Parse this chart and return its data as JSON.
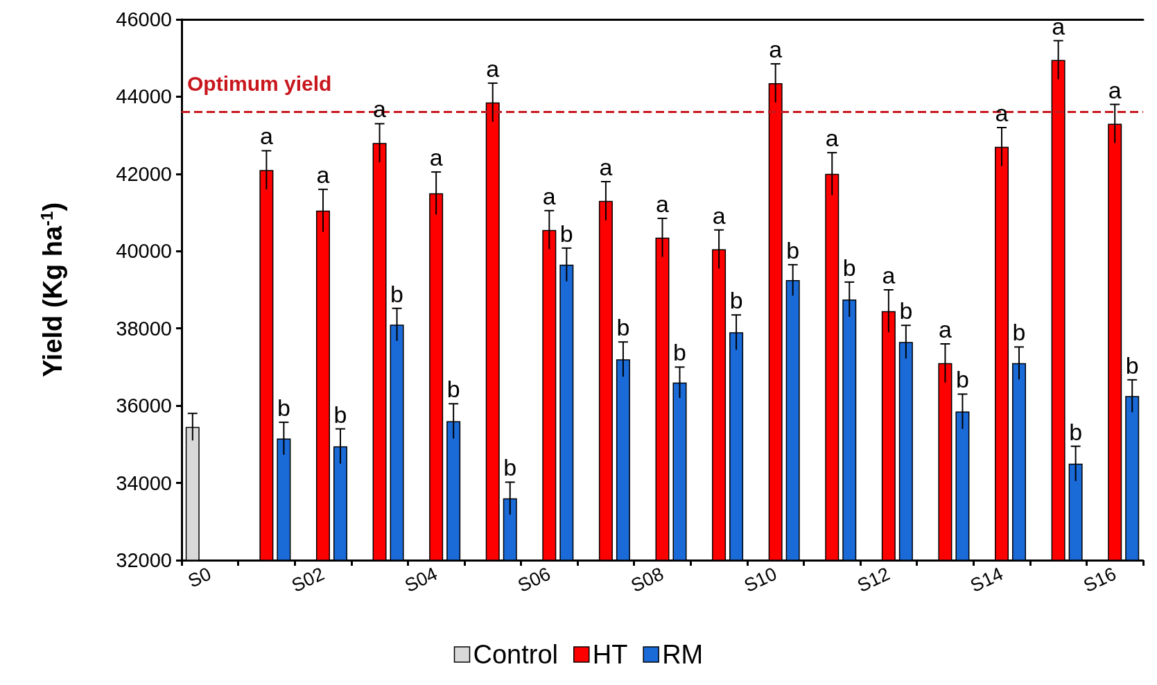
{
  "chart_data": {
    "type": "bar",
    "ylabel": "Yield (Kg ha$^{-1}$)",
    "categories": [
      "S0",
      null,
      "S02",
      null,
      "S04",
      null,
      "S06",
      null,
      "S08",
      null,
      "S10",
      null,
      "S12",
      null,
      "S14",
      null,
      "S16"
    ],
    "series": [
      {
        "name": "Control",
        "color": "#d9d9d9",
        "values": [
          35450,
          null,
          null,
          null,
          null,
          null,
          null,
          null,
          null,
          null,
          null,
          null,
          null,
          null,
          null,
          null,
          null
        ],
        "errors": [
          350,
          null,
          null,
          null,
          null,
          null,
          null,
          null,
          null,
          null,
          null,
          null,
          null,
          null,
          null,
          null,
          null
        ]
      },
      {
        "name": "HT",
        "color": "#ff0000",
        "values": [
          null,
          42100,
          41050,
          42800,
          41500,
          43850,
          40550,
          41300,
          40350,
          40050,
          44350,
          42000,
          38450,
          37100,
          42700,
          44950,
          43300
        ],
        "errors": [
          null,
          500,
          550,
          500,
          550,
          500,
          500,
          500,
          500,
          500,
          500,
          550,
          550,
          500,
          500,
          500,
          500
        ],
        "value_labels": [
          null,
          "a",
          "a",
          "a",
          "a",
          "a",
          "a",
          "a",
          "a",
          "a",
          "a",
          "a",
          "a",
          "a",
          "a",
          "a",
          "a"
        ]
      },
      {
        "name": "RM",
        "color": "#1a6ad8",
        "values": [
          null,
          35150,
          34950,
          38100,
          35600,
          33600,
          39650,
          37200,
          36600,
          37900,
          39250,
          38750,
          37650,
          35850,
          37100,
          34500,
          36250
        ],
        "errors": [
          null,
          420,
          450,
          420,
          450,
          420,
          430,
          450,
          400,
          450,
          400,
          450,
          430,
          450,
          420,
          450,
          420
        ],
        "value_labels": [
          null,
          "b",
          "b",
          "b",
          "b",
          "b",
          "b",
          "b",
          "b",
          "b",
          "b",
          "b",
          "b",
          "b",
          "b",
          "b",
          "b"
        ]
      }
    ],
    "ylim": [
      32000,
      46000
    ],
    "yticks": [
      32000,
      34000,
      36000,
      38000,
      40000,
      42000,
      44000,
      46000
    ],
    "ref_lines": [
      {
        "axis": "y",
        "value": 43600,
        "label": "Optimum yield",
        "color": "#c8161d",
        "line_style": "dashed"
      }
    ],
    "grid": false,
    "legend": "bottom"
  }
}
